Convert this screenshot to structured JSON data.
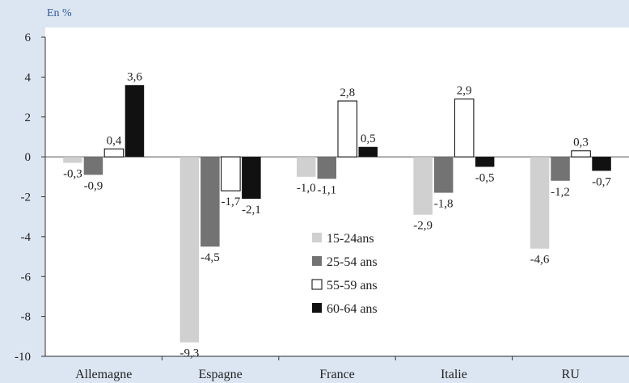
{
  "header": {
    "unit": "En %"
  },
  "colors": {
    "background": "#dce6f2",
    "plot_background": "#ffffff",
    "series": [
      "#d0d0d0",
      "#737373",
      "#ffffff",
      "#111111"
    ]
  },
  "chart_data": {
    "type": "bar",
    "categories": [
      "Allemagne",
      "Espagne",
      "France",
      "Italie",
      "RU"
    ],
    "series": [
      {
        "name": "15-24ans",
        "values": [
          -0.3,
          -9.3,
          -1.0,
          -2.9,
          -4.6
        ]
      },
      {
        "name": "25-54 ans",
        "values": [
          -0.9,
          -4.5,
          -1.1,
          -1.8,
          -1.2
        ]
      },
      {
        "name": "55-59 ans",
        "values": [
          0.4,
          -1.7,
          2.8,
          2.9,
          0.3
        ]
      },
      {
        "name": "60-64 ans",
        "values": [
          3.6,
          -2.1,
          0.5,
          -0.5,
          -0.7
        ]
      }
    ],
    "data_labels": [
      [
        "-0,3",
        "-9,3",
        "-1,0",
        "-2,9",
        "-4,6"
      ],
      [
        "-0,9",
        "-4,5",
        "-1,1",
        "-1,8",
        "-1,2"
      ],
      [
        "0,4",
        "-1,7",
        "2,8",
        "2,9",
        "0,3"
      ],
      [
        "3,6",
        "-2,1",
        "0,5",
        "-0,5",
        "-0,7"
      ]
    ],
    "ylim": [
      -10,
      6
    ],
    "yticks": [
      "-10",
      "-8",
      "-6",
      "-4",
      "-2",
      "0",
      "2",
      "4",
      "6"
    ],
    "ytick_values": [
      -10,
      -8,
      -6,
      -4,
      -2,
      0,
      2,
      4,
      6
    ],
    "legend": "inside-center",
    "grid": false,
    "title": "",
    "xlabel": "",
    "ylabel": ""
  }
}
